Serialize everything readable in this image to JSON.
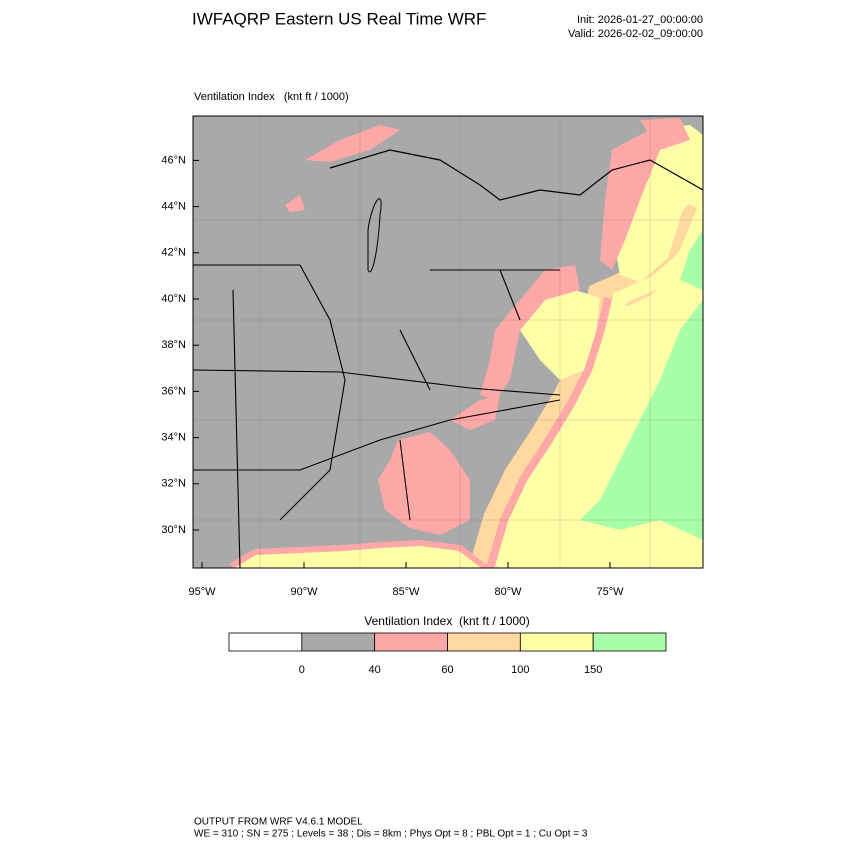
{
  "header": {
    "title": "IWFAQRP Eastern US Real Time WRF",
    "init": "Init: 2026-01-27_00:00:00",
    "valid": "Valid: 2026-02-02_09:00:00"
  },
  "map": {
    "title": "Ventilation Index   (knt ft / 1000)",
    "lat_labels": [
      "30°N",
      "32°N",
      "34°N",
      "36°N",
      "38°N",
      "40°N",
      "42°N",
      "44°N",
      "46°N"
    ],
    "lon_labels": [
      "95°W",
      "90°W",
      "85°W",
      "80°W",
      "75°W"
    ]
  },
  "colorbar": {
    "title": "Ventilation Index  (knt ft / 1000)",
    "colors": [
      "#ffffff",
      "#a9a9a9",
      "#ffa8a8",
      "#ffd9a0",
      "#ffffa8",
      "#a8ffa8"
    ],
    "labels": [
      0,
      40,
      60,
      100,
      150
    ]
  },
  "footer": {
    "line1": "OUTPUT FROM WRF V4.6.1 MODEL",
    "line2": "WE = 310 ; SN = 275 ; Levels = 38 ; Dis = 8km ; Phys Opt = 8 ; PBL Opt = 1 ; Cu Opt = 3"
  }
}
